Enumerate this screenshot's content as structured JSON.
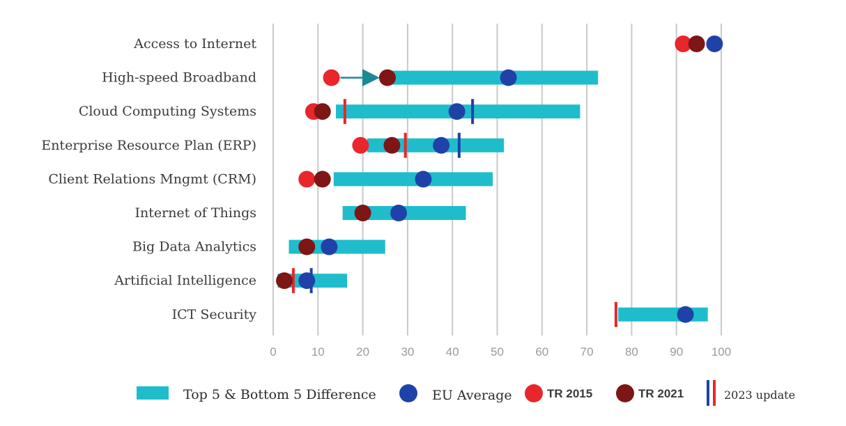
{
  "chart_data": {
    "type": "range-dot",
    "categories": [
      "Access to Internet",
      "High-speed Broadband",
      "Cloud Computing Systems",
      "Enterprise Resource Plan (ERP)",
      "Client Relations Mngmt (CRM)",
      "Internet of Things",
      "Big Data Analytics",
      "Artificial Intelligence",
      "ICT Security"
    ],
    "xlim": [
      0,
      100
    ],
    "x_ticks": [
      0,
      10,
      20,
      30,
      40,
      50,
      60,
      70,
      80,
      90,
      100
    ],
    "grid": true,
    "ranges": [
      null,
      [
        26,
        72.5
      ],
      [
        14,
        68.5
      ],
      [
        21,
        51.5
      ],
      [
        13.5,
        49
      ],
      [
        15.5,
        43
      ],
      [
        3.5,
        25
      ],
      [
        1,
        16.5
      ],
      [
        77,
        97
      ]
    ],
    "eu_average": [
      98.5,
      52.5,
      41,
      37.5,
      33.5,
      28,
      12.5,
      7.5,
      92
    ],
    "tr_2015": [
      91.5,
      13,
      9,
      19.5,
      7.5,
      null,
      null,
      null,
      null
    ],
    "tr_2021": [
      94.5,
      25.5,
      11,
      26.5,
      11,
      20,
      7.5,
      2.5,
      null
    ],
    "update_2023_tr": [
      null,
      null,
      16,
      29.5,
      null,
      null,
      null,
      4.5,
      76.5
    ],
    "update_2023_eu": [
      null,
      null,
      44.5,
      41.5,
      null,
      null,
      null,
      8.5,
      null
    ],
    "arrow": {
      "category_index": 1,
      "from": 15,
      "to": 23
    },
    "legend": {
      "position": "bottom",
      "range": "Top 5 & Bottom 5 Difference",
      "eu": "EU Average",
      "tr2015": "TR 2015",
      "tr2021": "TR 2021",
      "update": "2023 update"
    },
    "colors": {
      "range": "#1fbdcc",
      "eu": "#1f42a8",
      "tr2015": "#e8262b",
      "tr2021": "#7d1615",
      "grid": "#c9c9c9",
      "arrow": "#1a8a98"
    }
  }
}
